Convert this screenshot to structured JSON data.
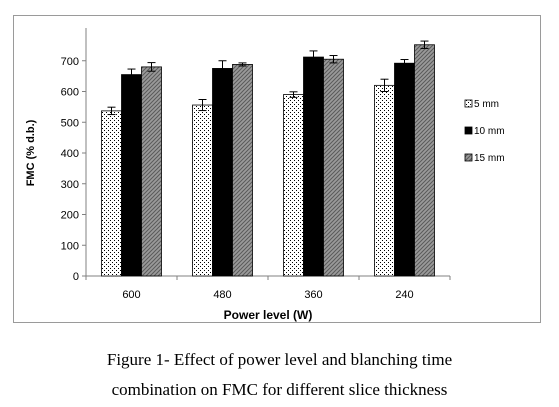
{
  "chart_data": {
    "type": "bar",
    "categories": [
      "600",
      "480",
      "360",
      "240"
    ],
    "series": [
      {
        "name": "5 mm",
        "values": [
          537,
          556,
          590,
          620
        ],
        "errors": [
          12,
          18,
          9,
          20
        ],
        "pattern": "dots"
      },
      {
        "name": "10 mm",
        "values": [
          655,
          675,
          712,
          692
        ],
        "errors": [
          18,
          25,
          20,
          12
        ],
        "pattern": "solid"
      },
      {
        "name": "15 mm",
        "values": [
          680,
          688,
          705,
          752
        ],
        "errors": [
          14,
          5,
          12,
          12
        ],
        "pattern": "hatch"
      }
    ],
    "xlabel": "Power level (W)",
    "ylabel": "FMC (% d.b.)",
    "ylim": [
      0,
      800
    ],
    "yticks": [
      0,
      100,
      200,
      300,
      400,
      500,
      600,
      700
    ],
    "grid": false,
    "legend_position": "right"
  },
  "caption": {
    "line1": "Figure 1- Effect of power level and blanching time",
    "line2": "combination on FMC for different slice thickness"
  },
  "colors": {
    "axis": "#808080",
    "bar_outline": "#000000",
    "solid_fill": "#000000",
    "dot_fill": "#ffffff",
    "hatch_fill": "#9a9a9a"
  }
}
